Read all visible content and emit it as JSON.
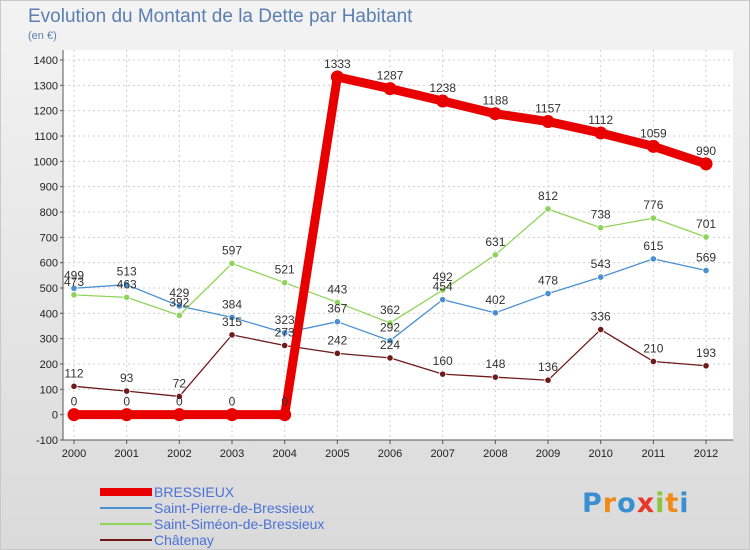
{
  "title": "Evolution du Montant de la Dette par Habitant",
  "subtitle": "(en €)",
  "logo": {
    "letters": [
      "P",
      "r",
      "o",
      "x",
      "i",
      "t",
      "i"
    ],
    "colors": [
      "#3a8fd1",
      "#f08a1a",
      "#3a8fd1",
      "#e8372a",
      "#8ac53e",
      "#f08a1a",
      "#3a8fd1"
    ]
  },
  "chart_data": {
    "type": "line",
    "x": [
      "2000",
      "2001",
      "2002",
      "2003",
      "2004",
      "2005",
      "2006",
      "2007",
      "2008",
      "2009",
      "2010",
      "2011",
      "2012"
    ],
    "ylim": [
      -100,
      1400
    ],
    "yticks": [
      "-100",
      "0",
      "100",
      "200",
      "300",
      "400",
      "500",
      "600",
      "700",
      "800",
      "900",
      "1000",
      "1100",
      "1200",
      "1300",
      "1400"
    ],
    "grid": true,
    "series": [
      {
        "name": "BRESSIEUX",
        "color": "#e80000",
        "values": [
          0,
          0,
          0,
          0,
          0,
          1333,
          1287,
          1238,
          1188,
          1157,
          1112,
          1059,
          990
        ],
        "labels": [
          "0",
          "0",
          "0",
          "0",
          "0",
          "1333",
          "1287",
          "1238",
          "1188",
          "1157",
          "1112",
          "1059",
          "990"
        ]
      },
      {
        "name": "Saint-Pierre-de-Bressieux",
        "color": "#4a90d0",
        "values": [
          499,
          513,
          429,
          384,
          323,
          367,
          292,
          454,
          402,
          478,
          543,
          615,
          569
        ],
        "labels": [
          "499",
          "513",
          "429",
          "384",
          "323",
          "367",
          "292",
          "454",
          "402",
          "478",
          "543",
          "615",
          "569"
        ]
      },
      {
        "name": "Saint-Siméon-de-Bressieux",
        "color": "#8fd45a",
        "values": [
          473,
          463,
          392,
          597,
          521,
          443,
          362,
          492,
          631,
          812,
          738,
          776,
          701
        ],
        "labels": [
          "473",
          "463",
          "392",
          "597",
          "521",
          "443",
          "362",
          "492",
          "631",
          "812",
          "738",
          "776",
          "701"
        ]
      },
      {
        "name": "Châtenay",
        "color": "#6e1a1a",
        "values": [
          112,
          93,
          72,
          315,
          273,
          242,
          224,
          160,
          148,
          136,
          336,
          210,
          193
        ],
        "labels": [
          "112",
          "93",
          "72",
          "315",
          "273",
          "242",
          "224",
          "160",
          "148",
          "136",
          "336",
          "210",
          "193"
        ]
      }
    ]
  }
}
